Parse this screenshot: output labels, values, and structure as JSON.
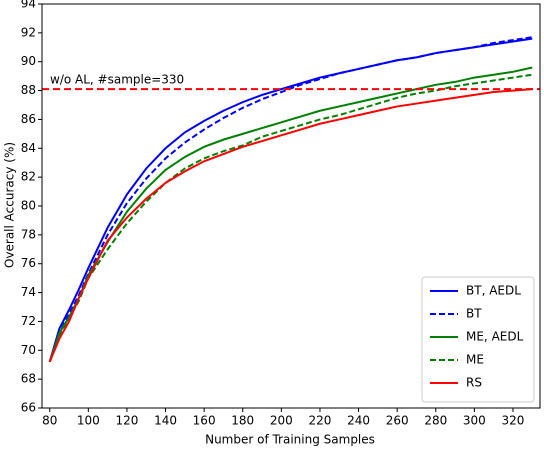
{
  "chart_data": {
    "type": "line",
    "xlabel": "Number of Training Samples",
    "ylabel": "Overall Accuracy (%)",
    "x": [
      80,
      85,
      90,
      95,
      100,
      110,
      120,
      130,
      140,
      150,
      160,
      170,
      180,
      190,
      200,
      210,
      220,
      230,
      240,
      250,
      260,
      270,
      280,
      290,
      300,
      310,
      320,
      330
    ],
    "series": [
      {
        "name": "BT, AEDL",
        "color": "#0000ff",
        "linestyle": "solid",
        "values": [
          69.2,
          71.5,
          72.8,
          74.2,
          75.7,
          78.5,
          80.8,
          82.6,
          84.0,
          85.1,
          85.9,
          86.6,
          87.2,
          87.7,
          88.1,
          88.5,
          88.9,
          89.2,
          89.5,
          89.8,
          90.1,
          90.3,
          90.6,
          90.8,
          91.0,
          91.2,
          91.4,
          91.6
        ]
      },
      {
        "name": "BT",
        "color": "#0000ff",
        "linestyle": "dashed",
        "values": [
          69.2,
          71.2,
          72.5,
          73.8,
          75.3,
          78.0,
          80.2,
          81.9,
          83.3,
          84.4,
          85.3,
          86.1,
          86.8,
          87.4,
          87.9,
          88.4,
          88.8,
          89.2,
          89.5,
          89.8,
          90.1,
          90.3,
          90.6,
          90.8,
          91.0,
          91.3,
          91.5,
          91.7
        ]
      },
      {
        "name": "ME, AEDL",
        "color": "#008000",
        "linestyle": "solid",
        "values": [
          69.2,
          71.2,
          72.3,
          73.6,
          75.2,
          77.5,
          79.6,
          81.2,
          82.5,
          83.4,
          84.1,
          84.6,
          85.0,
          85.4,
          85.8,
          86.2,
          86.6,
          86.9,
          87.2,
          87.5,
          87.8,
          88.1,
          88.4,
          88.6,
          88.9,
          89.1,
          89.3,
          89.6
        ]
      },
      {
        "name": "ME",
        "color": "#008000",
        "linestyle": "dashed",
        "values": [
          69.2,
          71.0,
          72.2,
          73.4,
          75.0,
          77.0,
          78.8,
          80.3,
          81.6,
          82.6,
          83.3,
          83.8,
          84.2,
          84.8,
          85.2,
          85.6,
          86.0,
          86.3,
          86.7,
          87.1,
          87.5,
          87.8,
          88.0,
          88.3,
          88.5,
          88.7,
          88.9,
          89.1
        ]
      },
      {
        "name": "RS",
        "color": "#ff0000",
        "linestyle": "solid",
        "values": [
          69.2,
          70.8,
          72.0,
          73.6,
          75.0,
          77.6,
          79.2,
          80.5,
          81.6,
          82.4,
          83.1,
          83.6,
          84.1,
          84.5,
          84.9,
          85.3,
          85.7,
          86.0,
          86.3,
          86.6,
          86.9,
          87.1,
          87.3,
          87.5,
          87.7,
          87.9,
          88.0,
          88.1
        ]
      }
    ],
    "reference_line": {
      "value": 88.1,
      "label": "w/o AL, #sample=330",
      "color": "#ff0000"
    },
    "xlim": [
      76,
      334
    ],
    "xticks": [
      80,
      100,
      120,
      140,
      160,
      180,
      200,
      220,
      240,
      260,
      280,
      300,
      320
    ],
    "ylim": [
      66,
      94
    ],
    "yticks": [
      66,
      68,
      70,
      72,
      74,
      76,
      78,
      80,
      82,
      84,
      86,
      88,
      90,
      92,
      94
    ],
    "legend": "lower right"
  }
}
